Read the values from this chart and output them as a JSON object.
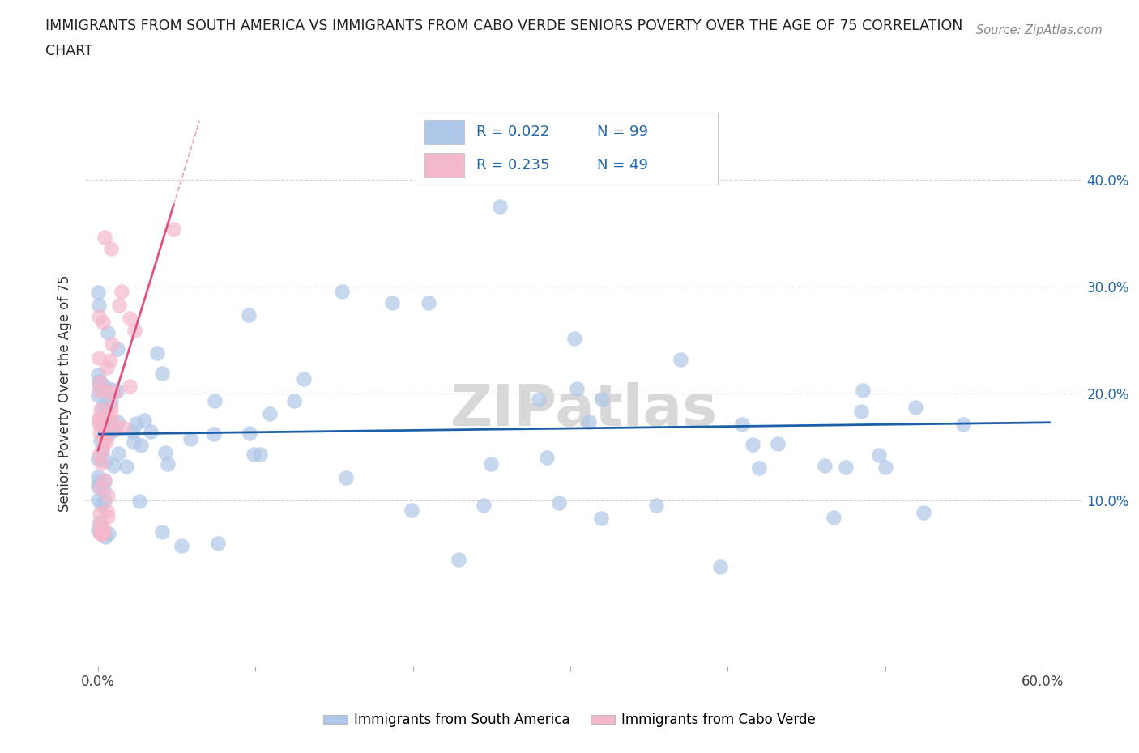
{
  "title_line1": "IMMIGRANTS FROM SOUTH AMERICA VS IMMIGRANTS FROM CABO VERDE SENIORS POVERTY OVER THE AGE OF 75 CORRELATION",
  "title_line2": "CHART",
  "source_text": "Source: ZipAtlas.com",
  "ylabel": "Seniors Poverty Over the Age of 75",
  "color_sa": "#aec6e8",
  "color_cv": "#f4b8cc",
  "trend_color_sa": "#1a5fa8",
  "trend_color_cv": "#e05080",
  "dashed_color": "#f0a0b8",
  "R_sa": "0.022",
  "N_sa": "99",
  "R_cv": "0.235",
  "N_cv": "49",
  "watermark": "ZIPatlas",
  "legend_color": "#2166ac",
  "grid_color": "#d0d0d0",
  "right_tick_color": "#2166ac"
}
